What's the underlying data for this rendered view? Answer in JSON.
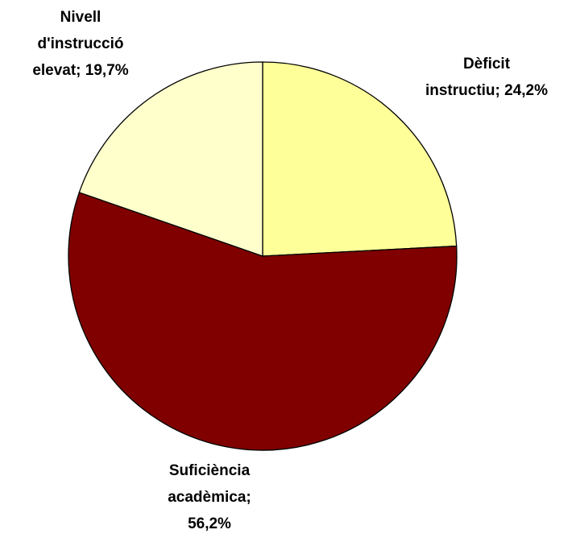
{
  "chart_data": {
    "type": "pie",
    "values": [
      24.2,
      56.2,
      19.7
    ],
    "value_labels": [
      [
        "Dèficit",
        "instructiu; 24,2%"
      ],
      [
        "Suficiència",
        "acadèmica;",
        "56,2%"
      ],
      [
        "Nivell",
        "d'instrucció",
        "elevat; 19,7%"
      ]
    ],
    "colors": [
      "#ffff99",
      "#800000",
      "#ffffcc"
    ]
  }
}
